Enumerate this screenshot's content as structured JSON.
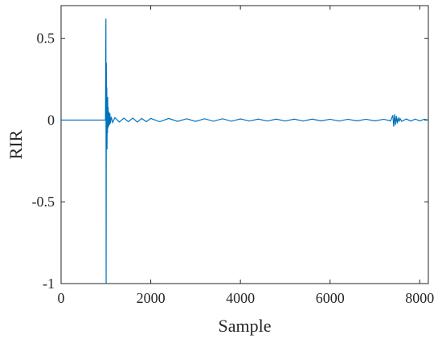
{
  "chart_data": {
    "type": "line",
    "xlabel": "Sample",
    "ylabel": "RIR",
    "xlim": [
      0,
      8192
    ],
    "ylim": [
      -1,
      0.7
    ],
    "x_ticks": [
      0,
      2000,
      4000,
      6000,
      8000
    ],
    "x_tick_labels": [
      "0",
      "2000",
      "4000",
      "6000",
      "8000"
    ],
    "y_ticks": [
      -1,
      -0.5,
      0,
      0.5
    ],
    "y_tick_labels": [
      "-1",
      "-0.5",
      "0",
      "0.5"
    ],
    "grid": false,
    "series": [
      {
        "color": "#0072BD",
        "x": [
          0,
          500,
          990,
          1000,
          1005,
          1010,
          1015,
          1020,
          1025,
          1030,
          1035,
          1040,
          1045,
          1050,
          1060,
          1070,
          1080,
          1090,
          1100,
          1120,
          1150,
          1200,
          1300,
          1400,
          1500,
          1600,
          1700,
          1800,
          1900,
          2000,
          2200,
          2400,
          2600,
          2800,
          3000,
          3200,
          3400,
          3600,
          3800,
          4000,
          4200,
          4400,
          4600,
          4800,
          5000,
          5200,
          5400,
          5600,
          5800,
          6000,
          6200,
          6400,
          6600,
          6800,
          7000,
          7200,
          7350,
          7400,
          7420,
          7440,
          7460,
          7480,
          7500,
          7520,
          7540,
          7560,
          7600,
          7700,
          7800,
          7900,
          8000,
          8100,
          8192
        ],
        "y": [
          0,
          0,
          0,
          0.62,
          -1.0,
          0.35,
          -0.15,
          0.2,
          -0.18,
          0.12,
          -0.08,
          0.14,
          -0.05,
          0.08,
          -0.04,
          0.05,
          -0.03,
          0.04,
          -0.02,
          0.02,
          -0.015,
          0.015,
          -0.012,
          0.012,
          -0.01,
          0.012,
          -0.012,
          0.01,
          -0.01,
          0.01,
          -0.01,
          0.01,
          -0.008,
          0.008,
          -0.008,
          0.008,
          -0.007,
          0.008,
          -0.007,
          0.007,
          -0.006,
          0.006,
          -0.006,
          0.006,
          -0.006,
          0.006,
          -0.006,
          0.006,
          -0.005,
          0.005,
          -0.006,
          0.005,
          -0.005,
          0.005,
          -0.005,
          0.005,
          -0.005,
          0.03,
          -0.04,
          0.035,
          -0.03,
          0.025,
          -0.02,
          0.015,
          -0.01,
          0.01,
          -0.008,
          0.007,
          -0.006,
          0.006,
          -0.005,
          0.005,
          0
        ]
      }
    ]
  }
}
